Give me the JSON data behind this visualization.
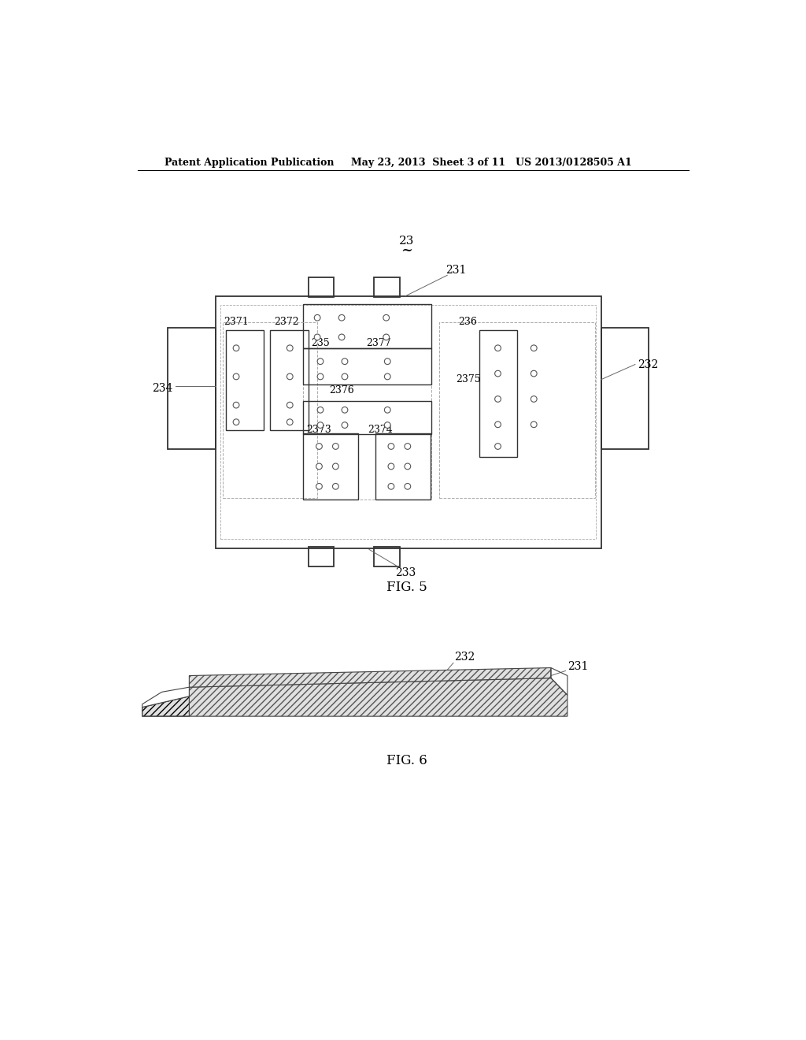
{
  "bg_color": "#ffffff",
  "line_color": "#000000",
  "header_left": "Patent Application Publication",
  "header_mid": "May 23, 2013  Sheet 3 of 11",
  "header_right": "US 2013/0128505 A1",
  "fig5_label": "FIG. 5",
  "fig6_label": "FIG. 6",
  "label_23": "23",
  "label_231": "231",
  "label_232": "232",
  "label_233": "233",
  "label_234": "234",
  "label_235": "235",
  "label_236": "236",
  "label_2371": "2371",
  "label_2372": "2372",
  "label_2373": "2373",
  "label_2374": "2374",
  "label_2375": "2375",
  "label_2376": "2376",
  "label_2377": "2377"
}
